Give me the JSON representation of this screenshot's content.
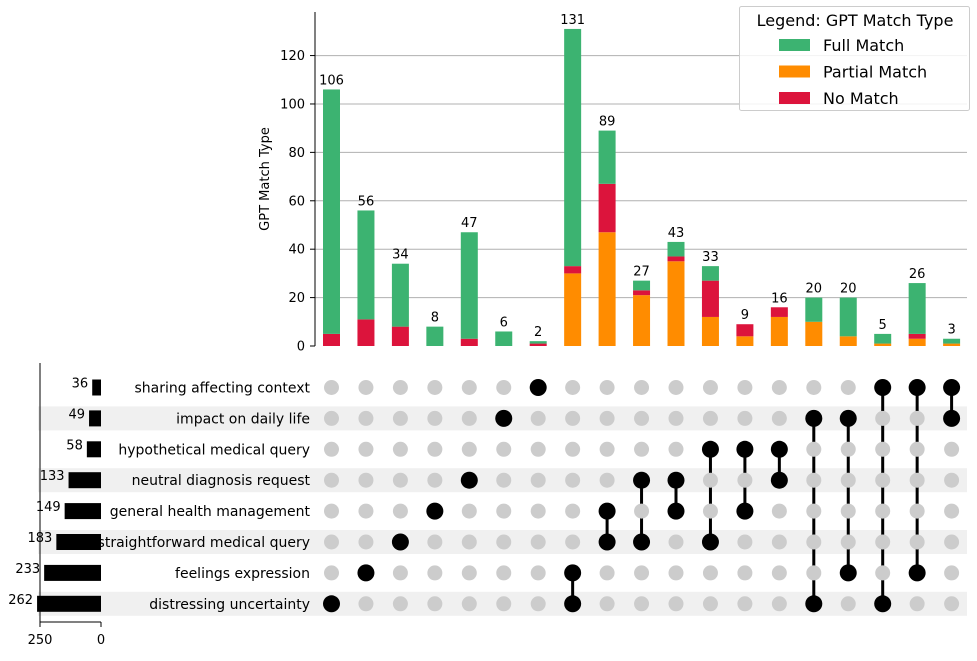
{
  "chart_data": {
    "type": "upset-stacked-bar",
    "ylabel": "GPT Match Type",
    "ylim": [
      0,
      138
    ],
    "yticks": [
      0,
      20,
      40,
      60,
      80,
      100,
      120
    ],
    "grid": true,
    "legend": {
      "title": "Legend: GPT Match Type",
      "position": "top-right",
      "entries": [
        {
          "name": "Full Match",
          "color": "#3cb371"
        },
        {
          "name": "Partial Match",
          "color": "#ff8c00"
        },
        {
          "name": "No Match",
          "color": "#dc143c"
        }
      ]
    },
    "sets": [
      {
        "name": "sharing affecting context",
        "size": 36
      },
      {
        "name": "impact on daily life",
        "size": 49
      },
      {
        "name": "hypothetical medical query",
        "size": 58
      },
      {
        "name": "neutral diagnosis request",
        "size": 133
      },
      {
        "name": "general health management",
        "size": 149
      },
      {
        "name": "straightforward medical query",
        "size": 183
      },
      {
        "name": "feelings expression",
        "size": 233
      },
      {
        "name": "distressing uncertainty",
        "size": 262
      }
    ],
    "set_size_axis": {
      "ticks": [
        250,
        0
      ],
      "max": 262
    },
    "intersections": [
      {
        "total": 106,
        "full": 101,
        "partial": 0,
        "no": 5,
        "members": [
          7
        ]
      },
      {
        "total": 56,
        "full": 45,
        "partial": 0,
        "no": 11,
        "members": [
          6
        ]
      },
      {
        "total": 34,
        "full": 26,
        "partial": 0,
        "no": 8,
        "members": [
          5
        ]
      },
      {
        "total": 8,
        "full": 8,
        "partial": 0,
        "no": 0,
        "members": [
          4
        ]
      },
      {
        "total": 47,
        "full": 44,
        "partial": 0,
        "no": 3,
        "members": [
          3
        ]
      },
      {
        "total": 6,
        "full": 6,
        "partial": 0,
        "no": 0,
        "members": [
          1
        ]
      },
      {
        "total": 2,
        "full": 1,
        "partial": 0,
        "no": 1,
        "members": [
          0
        ]
      },
      {
        "total": 131,
        "full": 98,
        "partial": 30,
        "no": 3,
        "members": [
          6,
          7
        ]
      },
      {
        "total": 89,
        "full": 22,
        "partial": 47,
        "no": 20,
        "members": [
          4,
          5
        ]
      },
      {
        "total": 27,
        "full": 4,
        "partial": 21,
        "no": 2,
        "members": [
          3,
          5
        ]
      },
      {
        "total": 43,
        "full": 6,
        "partial": 35,
        "no": 2,
        "members": [
          3,
          4
        ]
      },
      {
        "total": 33,
        "full": 6,
        "partial": 12,
        "no": 15,
        "members": [
          2,
          5
        ]
      },
      {
        "total": 9,
        "full": 0,
        "partial": 4,
        "no": 5,
        "members": [
          2,
          4
        ]
      },
      {
        "total": 16,
        "full": 0,
        "partial": 12,
        "no": 4,
        "members": [
          2,
          3
        ]
      },
      {
        "total": 20,
        "full": 10,
        "partial": 10,
        "no": 0,
        "members": [
          1,
          7
        ]
      },
      {
        "total": 20,
        "full": 16,
        "partial": 4,
        "no": 0,
        "members": [
          1,
          6
        ]
      },
      {
        "total": 5,
        "full": 4,
        "partial": 1,
        "no": 0,
        "members": [
          0,
          7
        ]
      },
      {
        "total": 26,
        "full": 21,
        "partial": 3,
        "no": 2,
        "members": [
          0,
          6
        ]
      },
      {
        "total": 3,
        "full": 2,
        "partial": 1,
        "no": 0,
        "members": [
          0,
          1
        ]
      }
    ]
  }
}
